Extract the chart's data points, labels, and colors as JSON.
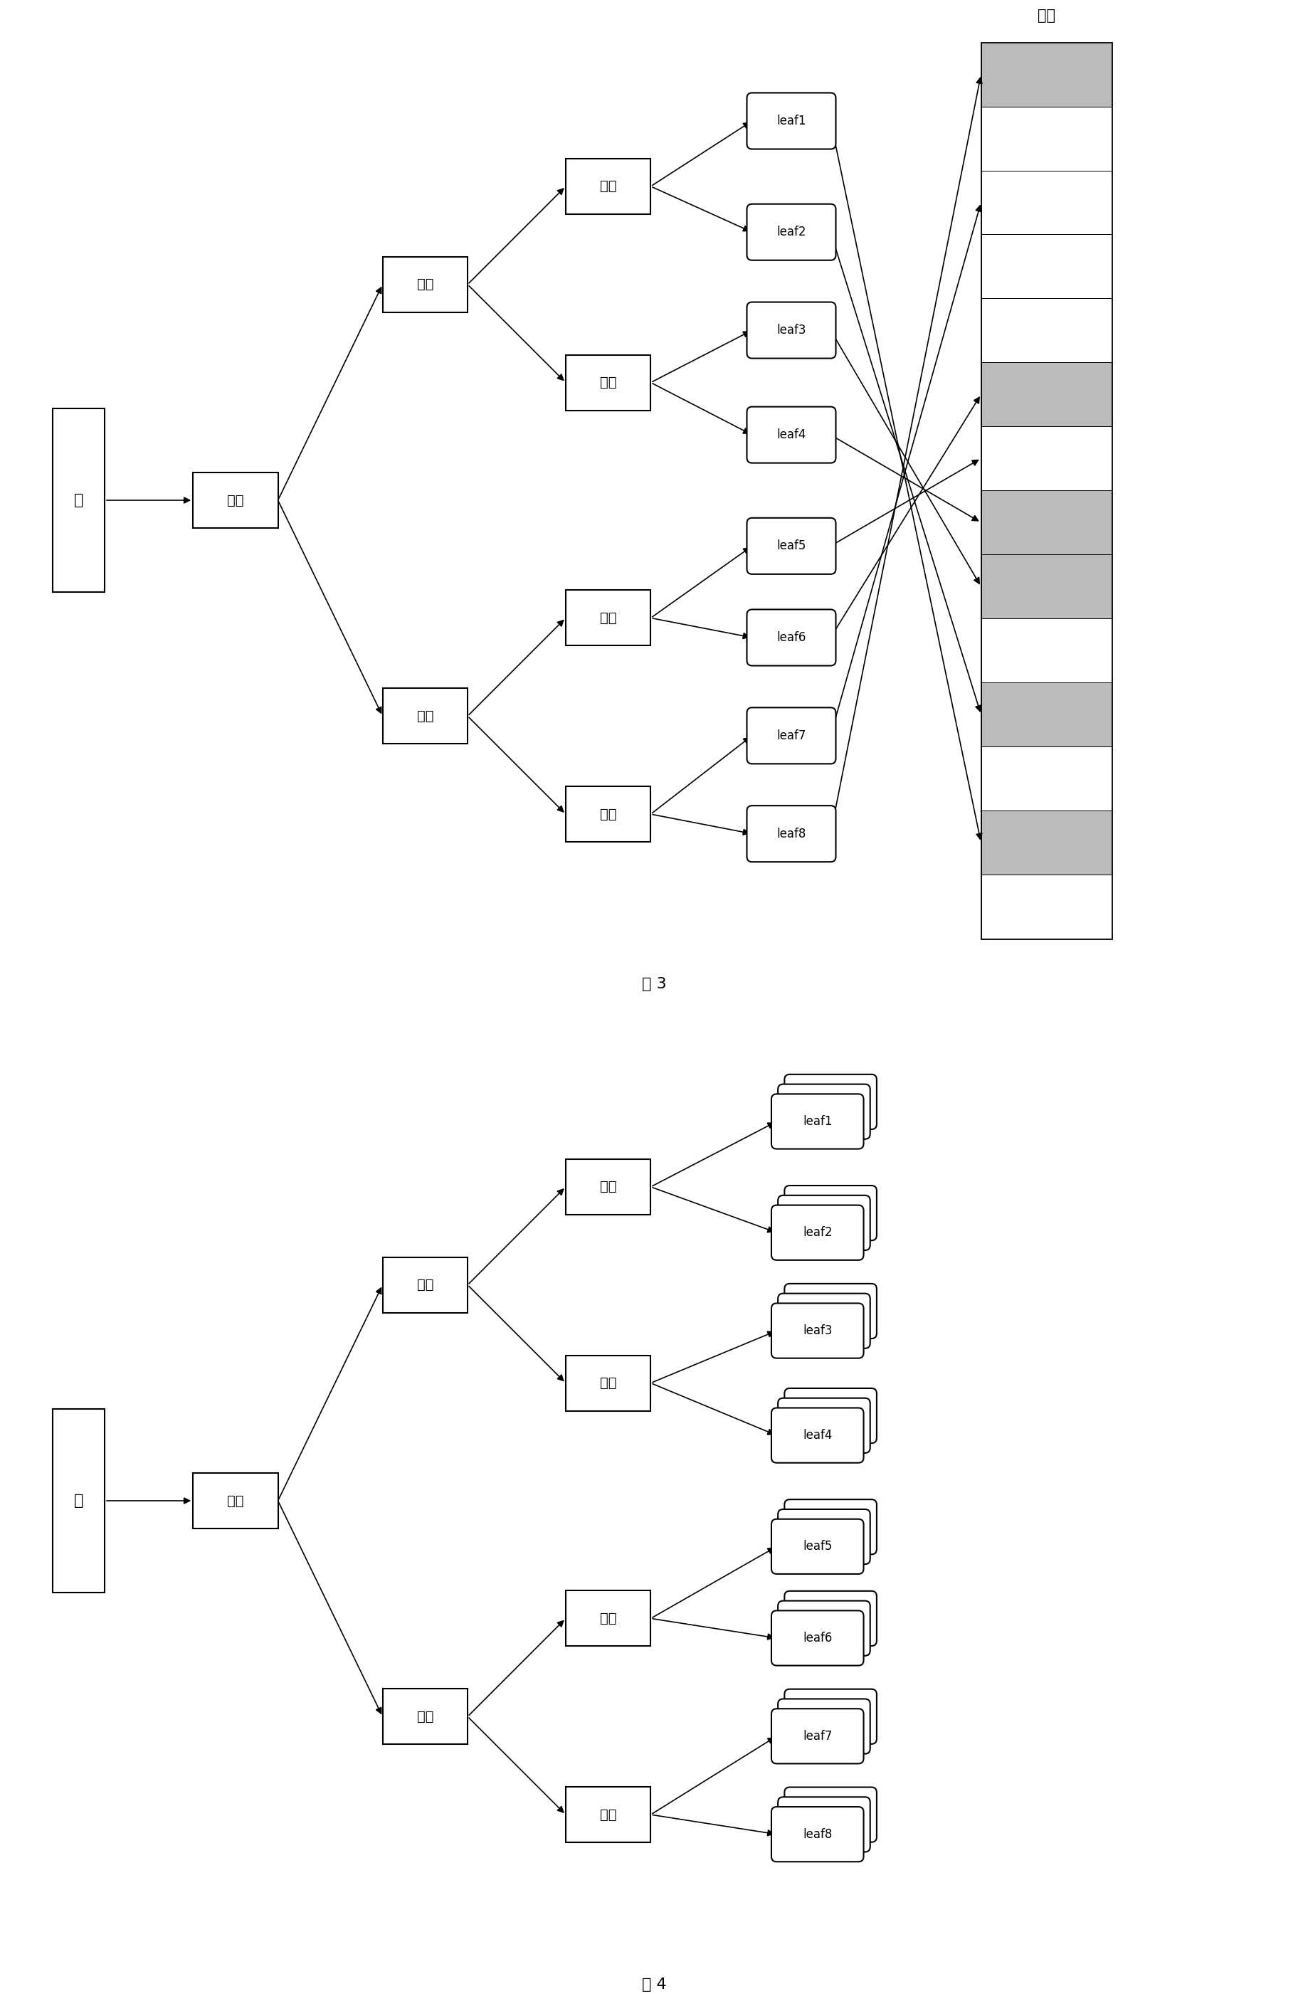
{
  "fig3": {
    "title": "图 3",
    "root_label": "根",
    "node_label": "节点",
    "memory_label": "内存",
    "leaves": [
      "leaf1",
      "leaf2",
      "leaf3",
      "leaf4",
      "leaf5",
      "leaf6",
      "leaf7",
      "leaf8"
    ],
    "memory_rows": 14,
    "shaded_rows": [
      1,
      3,
      5,
      6,
      8,
      13
    ],
    "bg_color": "#ffffff"
  },
  "fig4": {
    "title": "图 4",
    "root_label": "根",
    "node_label": "节点",
    "leaves": [
      "leaf1",
      "leaf2",
      "leaf3",
      "leaf4",
      "leaf5",
      "leaf6",
      "leaf7",
      "leaf8"
    ],
    "bg_color": "#ffffff"
  }
}
